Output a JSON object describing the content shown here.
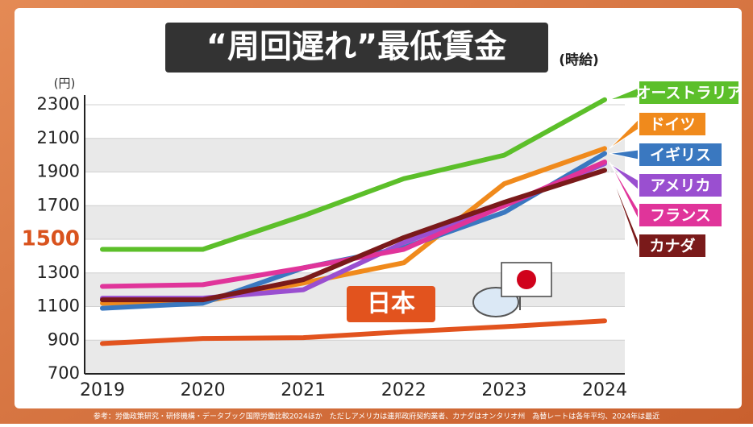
{
  "chart_data": {
    "type": "line",
    "title": "“周回遅れ”最低賃金",
    "subtitle": "(時給)",
    "y_label": "(円)",
    "categories": [
      "2019",
      "2020",
      "2021",
      "2022",
      "2023",
      "2024"
    ],
    "series": [
      {
        "name": "オーストラリア",
        "color": "#5cbf2a",
        "values": [
          1440,
          1440,
          1640,
          1860,
          2000,
          2330
        ]
      },
      {
        "name": "ドイツ",
        "color": "#f08a1c",
        "values": [
          1120,
          1130,
          1240,
          1360,
          1830,
          2040
        ]
      },
      {
        "name": "イギリス",
        "color": "#3a78c0",
        "values": [
          1090,
          1120,
          1330,
          1450,
          1660,
          2010
        ]
      },
      {
        "name": "アメリカ",
        "color": "#9a4fd0",
        "values": [
          1150,
          1150,
          1200,
          1480,
          1700,
          1950
        ]
      },
      {
        "name": "フランス",
        "color": "#e0349a",
        "values": [
          1220,
          1230,
          1330,
          1440,
          1700,
          1960
        ]
      },
      {
        "name": "カナダ",
        "color": "#7a1a1a",
        "values": [
          1140,
          1140,
          1260,
          1510,
          1720,
          1910
        ]
      },
      {
        "name": "日本",
        "color": "#e2531e",
        "values": [
          880,
          910,
          915,
          950,
          980,
          1015
        ]
      }
    ],
    "ylim": [
      700,
      2300
    ],
    "yticks": [
      700,
      900,
      1100,
      1300,
      1500,
      1700,
      1900,
      2100,
      2300
    ],
    "highlight_ytick": 1500,
    "footnote": "参考：労働政策研究・研修機構・データブック国際労働比較2024ほか　ただしアメリカは連邦政府契約業者、カナダはオンタリオ州　為替レートは各年平均、2024年は最近"
  }
}
